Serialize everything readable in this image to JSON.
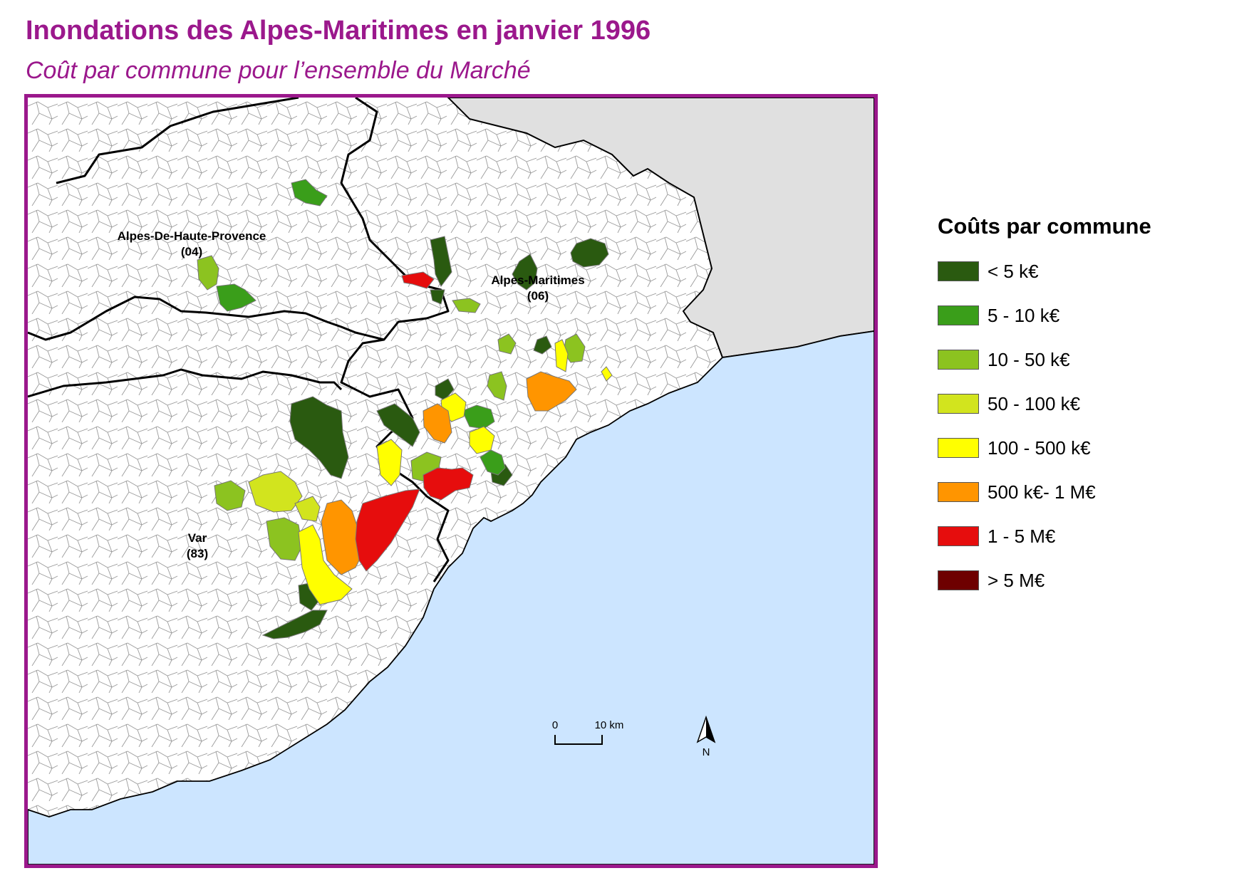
{
  "title": "Inondations des Alpes-Maritimes en janvier 1996",
  "subtitle": "Coût par commune pour l’ensemble du Marché",
  "legend": {
    "title": "Coûts par commune",
    "items": [
      {
        "label": "< 5 k€",
        "color": "#2a5a10"
      },
      {
        "label": "5 - 10 k€",
        "color": "#3a9e1a"
      },
      {
        "label": "10 - 50 k€",
        "color": "#8cc320"
      },
      {
        "label": "50 - 100 k€",
        "color": "#d2e41e"
      },
      {
        "label": "100 - 500 k€",
        "color": "#ffff00"
      },
      {
        "label": "500 k€- 1 M€",
        "color": "#ff9500"
      },
      {
        "label": "1 - 5 M€",
        "color": "#e60d0d"
      },
      {
        "label": "> 5 M€",
        "color": "#6e0000"
      }
    ]
  },
  "departments": {
    "d04": {
      "name": "Alpes-De-Haute-Provence",
      "code": "(04)"
    },
    "d06": {
      "name": "Alpes-Maritimes",
      "code": "(06)"
    },
    "d83": {
      "name": "Var",
      "code": "(83)"
    }
  },
  "scale_bar": {
    "start": "0",
    "end": "10 km"
  },
  "north": "N",
  "colors": {
    "accent": "#9b188c",
    "sea": "#cce5ff",
    "foreign": "#e0e0e0",
    "land": "#ffffff"
  }
}
